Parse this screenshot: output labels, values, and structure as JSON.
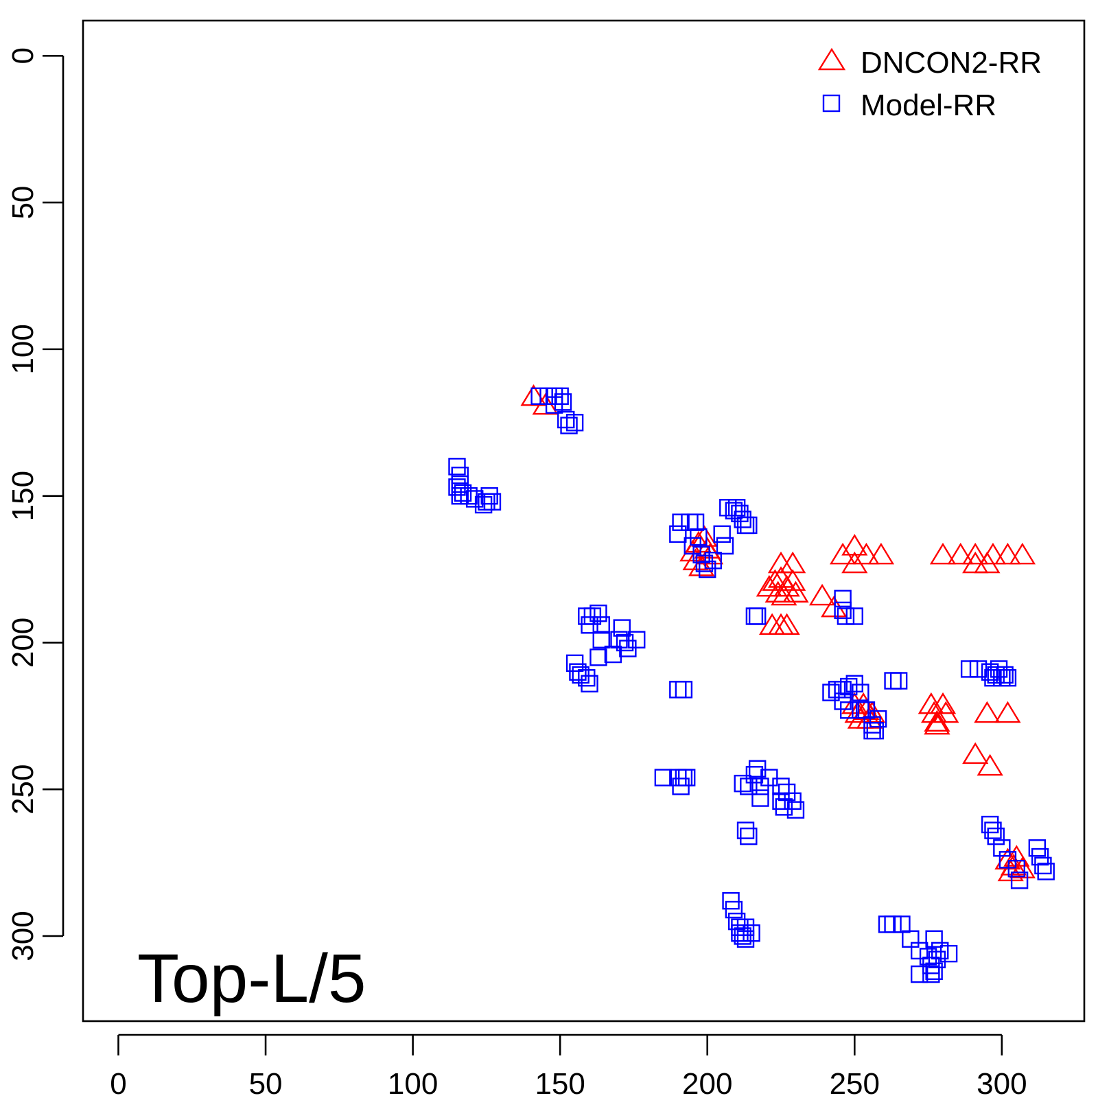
{
  "chart_data": {
    "type": "scatter",
    "title": "",
    "xlabel": "",
    "ylabel": "",
    "annotation": "Top-L/5",
    "xlim": [
      -12,
      328
    ],
    "ylim": [
      -12,
      329
    ],
    "y_reversed": true,
    "xticks": [
      "0",
      "50",
      "100",
      "150",
      "200",
      "250",
      "300"
    ],
    "yticks": [
      "0",
      "50",
      "100",
      "150",
      "200",
      "250",
      "300"
    ],
    "legend_position": "top-right",
    "series": [
      {
        "name": "DNCON2-RR",
        "marker": "triangle",
        "color": "#ff0000",
        "points": [
          [
            141,
            116
          ],
          [
            145,
            119
          ],
          [
            195,
            169
          ],
          [
            197,
            166
          ],
          [
            199,
            164
          ],
          [
            200,
            168
          ],
          [
            196,
            172
          ],
          [
            198,
            174
          ],
          [
            201,
            170
          ],
          [
            221,
            181
          ],
          [
            223,
            179
          ],
          [
            225,
            178
          ],
          [
            227,
            181
          ],
          [
            229,
            179
          ],
          [
            224,
            183
          ],
          [
            226,
            184
          ],
          [
            230,
            183
          ],
          [
            225,
            173
          ],
          [
            229,
            173
          ],
          [
            222,
            194
          ],
          [
            225,
            194
          ],
          [
            227,
            194
          ],
          [
            239,
            184
          ],
          [
            243,
            188
          ],
          [
            246,
            170
          ],
          [
            250,
            167
          ],
          [
            250,
            173
          ],
          [
            254,
            170
          ],
          [
            259,
            170
          ],
          [
            280,
            170
          ],
          [
            286,
            170
          ],
          [
            291,
            173
          ],
          [
            291,
            170
          ],
          [
            295,
            173
          ],
          [
            297,
            170
          ],
          [
            302,
            170
          ],
          [
            307,
            170
          ],
          [
            250,
            221
          ],
          [
            251,
            224
          ],
          [
            253,
            221
          ],
          [
            254,
            223
          ],
          [
            255,
            226
          ],
          [
            256,
            224
          ],
          [
            252,
            226
          ],
          [
            276,
            221
          ],
          [
            277,
            224
          ],
          [
            278,
            227
          ],
          [
            280,
            221
          ],
          [
            281,
            224
          ],
          [
            278,
            228
          ],
          [
            295,
            224
          ],
          [
            302,
            224
          ],
          [
            291,
            238
          ],
          [
            296,
            242
          ],
          [
            302,
            274
          ],
          [
            304,
            276
          ],
          [
            305,
            273
          ],
          [
            307,
            277
          ],
          [
            303,
            278
          ]
        ]
      },
      {
        "name": "Model-RR",
        "marker": "square",
        "color": "#0000ff",
        "points": [
          [
            143,
            116
          ],
          [
            146,
            116
          ],
          [
            148,
            116
          ],
          [
            150,
            116
          ],
          [
            151,
            118
          ],
          [
            148,
            119
          ],
          [
            152,
            124
          ],
          [
            153,
            126
          ],
          [
            155,
            125
          ],
          [
            115,
            140
          ],
          [
            116,
            143
          ],
          [
            116,
            146
          ],
          [
            115,
            147
          ],
          [
            116,
            150
          ],
          [
            117,
            149
          ],
          [
            119,
            150
          ],
          [
            121,
            151
          ],
          [
            124,
            153
          ],
          [
            125,
            152
          ],
          [
            127,
            152
          ],
          [
            126,
            150
          ],
          [
            190,
            163
          ],
          [
            191,
            159
          ],
          [
            194,
            159
          ],
          [
            196,
            159
          ],
          [
            197,
            164
          ],
          [
            195,
            167
          ],
          [
            198,
            170
          ],
          [
            199,
            173
          ],
          [
            200,
            175
          ],
          [
            202,
            172
          ],
          [
            205,
            163
          ],
          [
            206,
            167
          ],
          [
            207,
            154
          ],
          [
            209,
            155
          ],
          [
            210,
            154
          ],
          [
            211,
            156
          ],
          [
            212,
            158
          ],
          [
            213,
            160
          ],
          [
            214,
            160
          ],
          [
            159,
            191
          ],
          [
            160,
            194
          ],
          [
            161,
            191
          ],
          [
            163,
            190
          ],
          [
            164,
            194
          ],
          [
            164,
            199
          ],
          [
            163,
            205
          ],
          [
            168,
            204
          ],
          [
            170,
            199
          ],
          [
            171,
            195
          ],
          [
            172,
            200
          ],
          [
            173,
            202
          ],
          [
            176,
            199
          ],
          [
            155,
            207
          ],
          [
            156,
            210
          ],
          [
            157,
            211
          ],
          [
            159,
            212
          ],
          [
            160,
            214
          ],
          [
            190,
            216
          ],
          [
            192,
            216
          ],
          [
            216,
            191
          ],
          [
            217,
            191
          ],
          [
            246,
            185
          ],
          [
            246,
            189
          ],
          [
            247,
            191
          ],
          [
            250,
            191
          ],
          [
            242,
            217
          ],
          [
            244,
            216
          ],
          [
            246,
            216
          ],
          [
            248,
            215
          ],
          [
            250,
            214
          ],
          [
            252,
            217
          ],
          [
            246,
            220
          ],
          [
            248,
            223
          ],
          [
            252,
            223
          ],
          [
            254,
            223
          ],
          [
            256,
            228
          ],
          [
            258,
            226
          ],
          [
            256,
            230
          ],
          [
            257,
            230
          ],
          [
            263,
            213
          ],
          [
            265,
            213
          ],
          [
            289,
            209
          ],
          [
            292,
            209
          ],
          [
            296,
            210
          ],
          [
            297,
            212
          ],
          [
            298,
            211
          ],
          [
            299,
            209
          ],
          [
            300,
            212
          ],
          [
            301,
            211
          ],
          [
            302,
            212
          ],
          [
            185,
            246
          ],
          [
            190,
            246
          ],
          [
            191,
            249
          ],
          [
            192,
            246
          ],
          [
            193,
            246
          ],
          [
            212,
            248
          ],
          [
            214,
            249
          ],
          [
            216,
            245
          ],
          [
            217,
            243
          ],
          [
            218,
            249
          ],
          [
            218,
            253
          ],
          [
            221,
            246
          ],
          [
            225,
            249
          ],
          [
            225,
            254
          ],
          [
            226,
            256
          ],
          [
            227,
            251
          ],
          [
            229,
            254
          ],
          [
            230,
            257
          ],
          [
            213,
            264
          ],
          [
            214,
            266
          ],
          [
            208,
            288
          ],
          [
            209,
            291
          ],
          [
            210,
            295
          ],
          [
            211,
            297
          ],
          [
            212,
            300
          ],
          [
            213,
            297
          ],
          [
            215,
            299
          ],
          [
            213,
            301
          ],
          [
            211,
            299
          ],
          [
            296,
            262
          ],
          [
            297,
            264
          ],
          [
            298,
            266
          ],
          [
            300,
            270
          ],
          [
            302,
            274
          ],
          [
            305,
            277
          ],
          [
            306,
            281
          ],
          [
            312,
            270
          ],
          [
            313,
            273
          ],
          [
            314,
            276
          ],
          [
            315,
            278
          ],
          [
            261,
            296
          ],
          [
            263,
            296
          ],
          [
            266,
            296
          ],
          [
            269,
            301
          ],
          [
            272,
            305
          ],
          [
            275,
            307
          ],
          [
            276,
            310
          ],
          [
            277,
            312
          ],
          [
            276,
            313
          ],
          [
            278,
            308
          ],
          [
            277,
            301
          ],
          [
            279,
            305
          ],
          [
            282,
            306
          ],
          [
            272,
            313
          ]
        ]
      }
    ]
  }
}
